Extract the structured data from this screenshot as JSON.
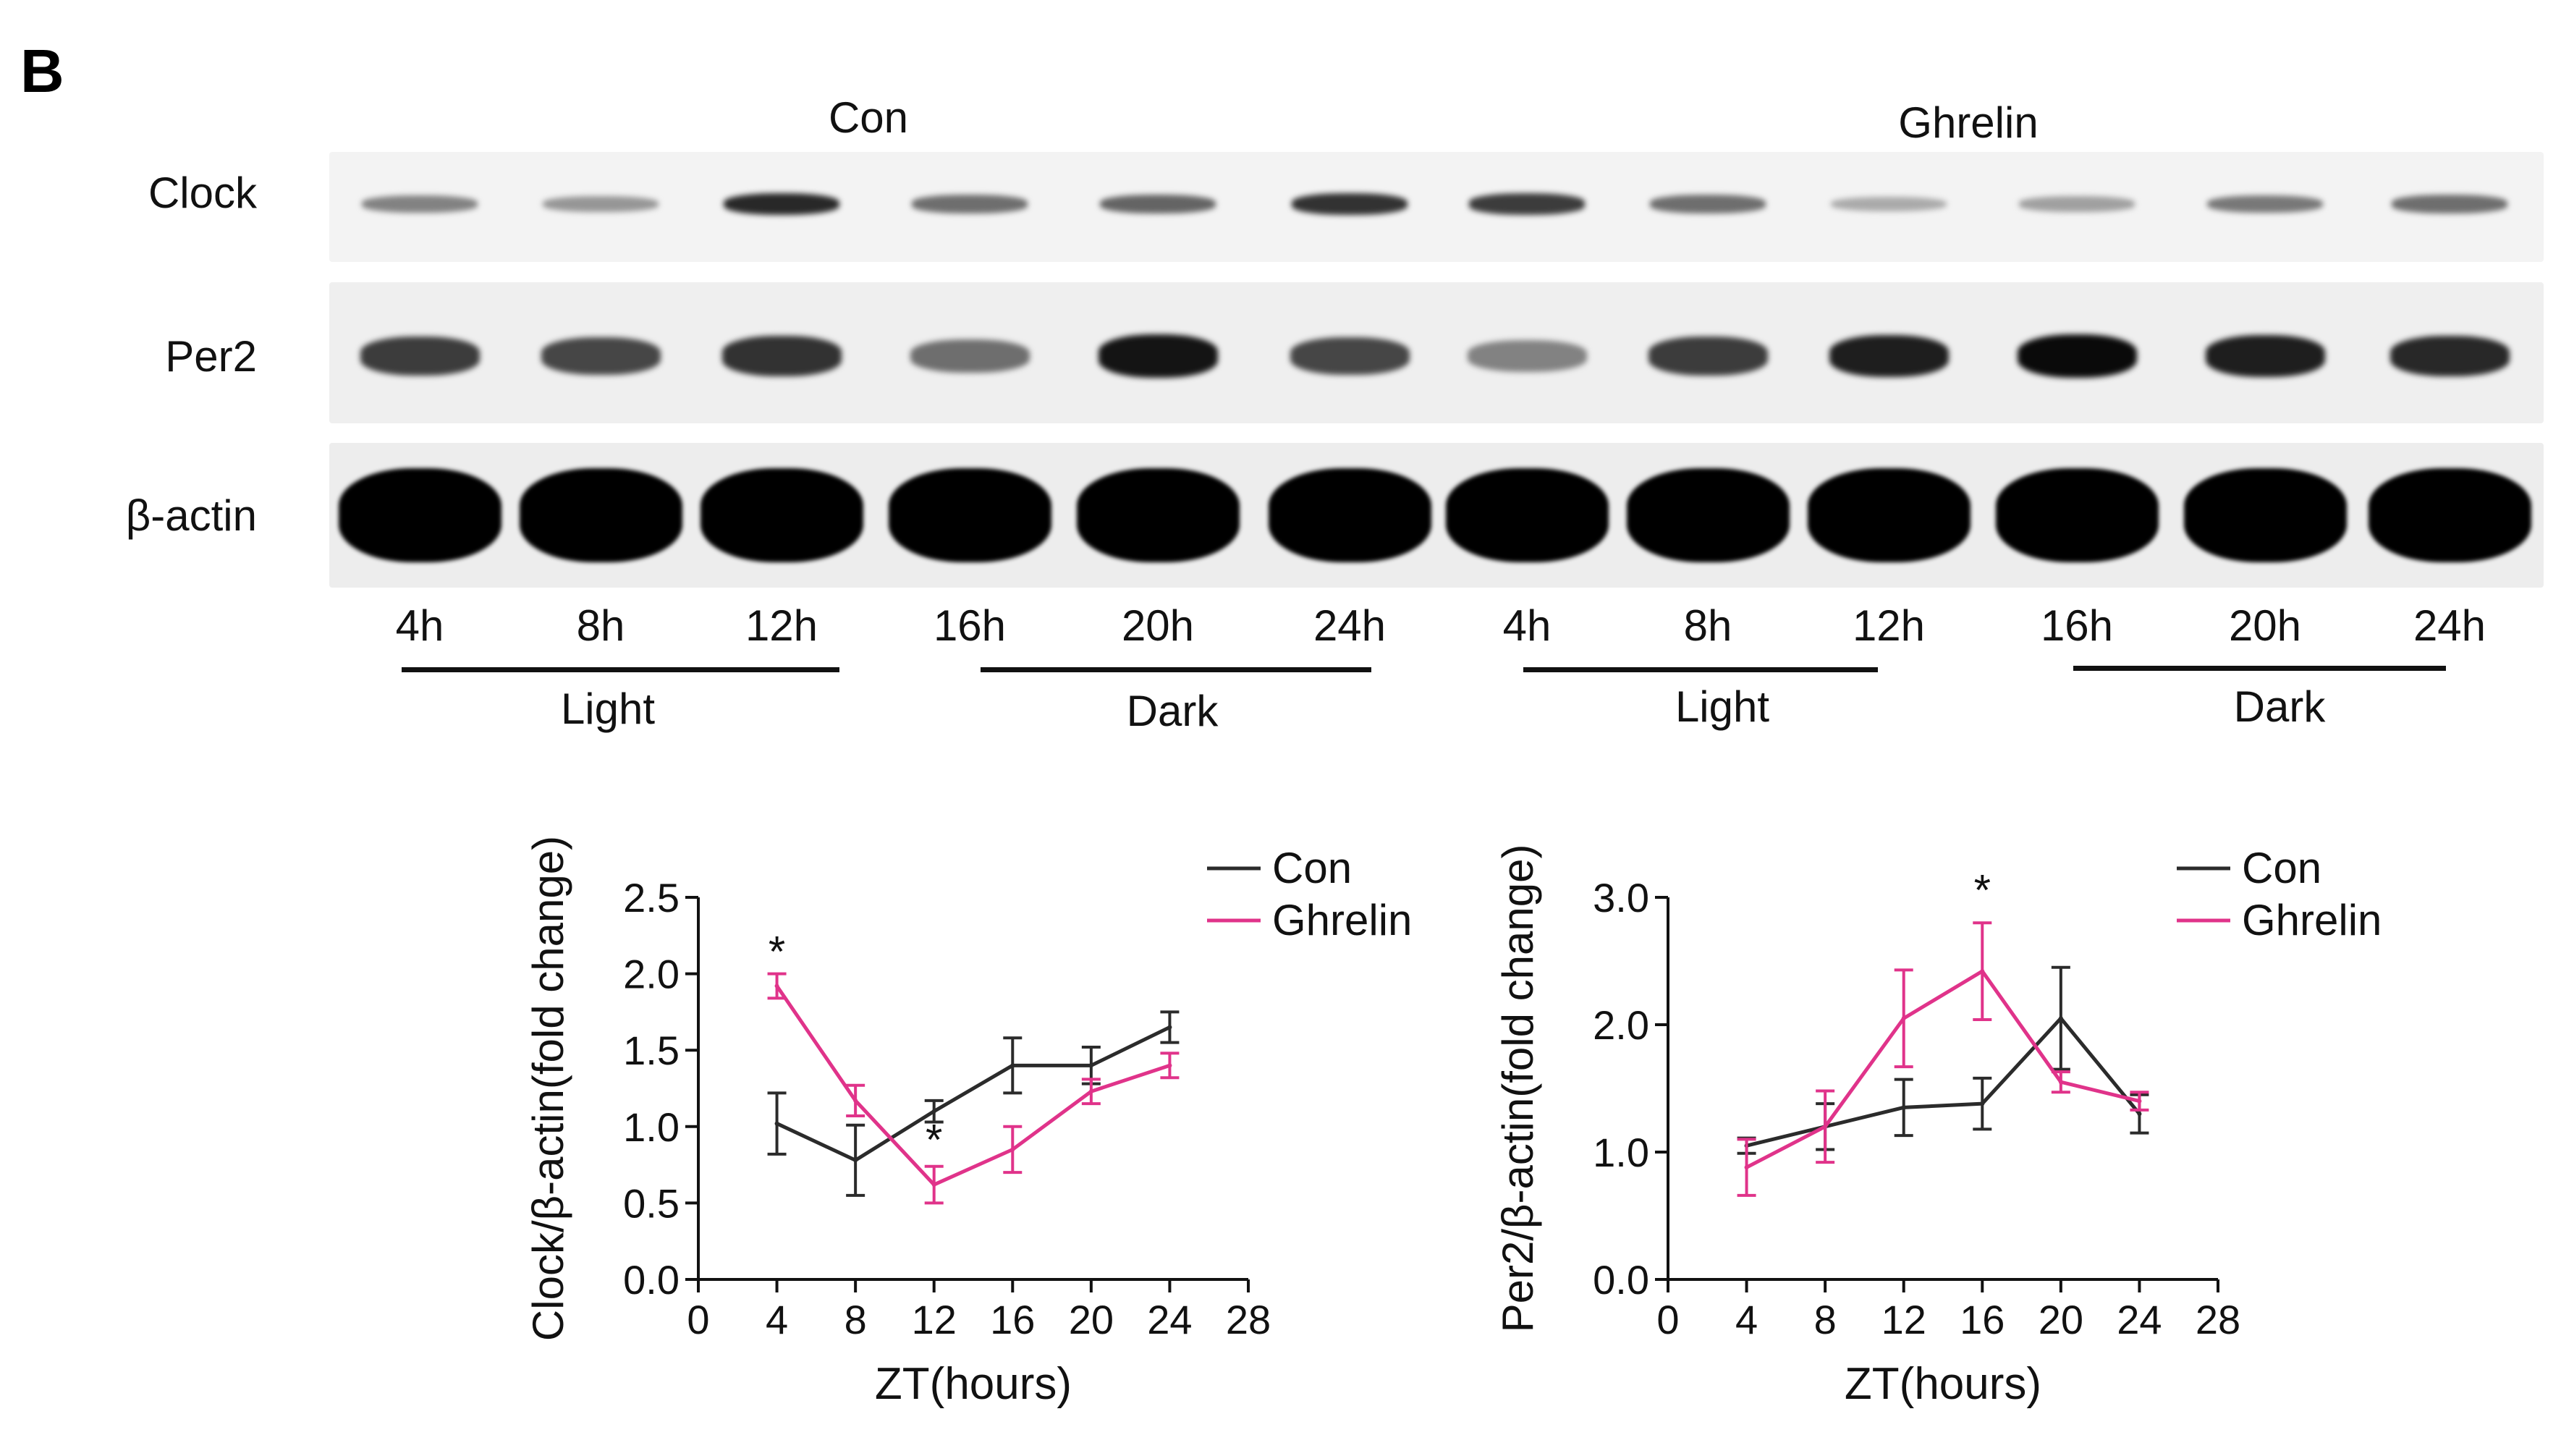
{
  "panel_label": "B",
  "blot": {
    "groups": [
      {
        "name": "Con"
      },
      {
        "name": "Ghrelin"
      }
    ],
    "rows": [
      {
        "label": "Clock"
      },
      {
        "label": "Per2"
      },
      {
        "label": "β-actin"
      }
    ],
    "lanes": [
      "4h",
      "8h",
      "12h",
      "16h",
      "20h",
      "24h",
      "4h",
      "8h",
      "12h",
      "16h",
      "20h",
      "24h"
    ],
    "phases": [
      "Light",
      "Dark",
      "Light",
      "Dark"
    ],
    "intensity": {
      "clock": [
        0.35,
        0.25,
        0.8,
        0.45,
        0.5,
        0.75,
        0.7,
        0.45,
        0.15,
        0.2,
        0.4,
        0.45
      ],
      "per2": [
        0.7,
        0.65,
        0.75,
        0.45,
        0.9,
        0.65,
        0.35,
        0.7,
        0.85,
        0.95,
        0.85,
        0.8
      ],
      "actin": [
        1,
        1,
        1,
        1,
        1,
        1,
        1,
        1,
        1,
        1,
        1,
        1
      ]
    }
  },
  "chart_data": [
    {
      "type": "line",
      "ylabel": "Clock/β-actin(fold change)",
      "xlabel": "ZT(hours)",
      "xlim": [
        0,
        28
      ],
      "xticks": [
        "0",
        "4",
        "8",
        "12",
        "16",
        "20",
        "24",
        "28"
      ],
      "ylim": [
        0,
        2.5
      ],
      "yticks": [
        "0.0",
        "0.5",
        "1.0",
        "1.5",
        "2.0",
        "2.5"
      ],
      "x": [
        4,
        8,
        12,
        16,
        20,
        24
      ],
      "series": [
        {
          "name": "Con",
          "color": "#2b2b2b",
          "values": [
            1.02,
            0.78,
            1.1,
            1.4,
            1.4,
            1.65
          ],
          "errors": [
            0.2,
            0.23,
            0.07,
            0.18,
            0.12,
            0.1
          ]
        },
        {
          "name": "Ghrelin",
          "color": "#e0338a",
          "values": [
            1.92,
            1.17,
            0.62,
            0.85,
            1.23,
            1.4
          ],
          "errors": [
            0.08,
            0.1,
            0.12,
            0.15,
            0.08,
            0.08
          ]
        }
      ],
      "annotations": [
        {
          "text": "*",
          "x": 4,
          "y": 2.18
        },
        {
          "text": "*",
          "x": 12,
          "y": 0.95
        }
      ],
      "legend": "top-right"
    },
    {
      "type": "line",
      "ylabel": "Per2/β-actin(fold change)",
      "xlabel": "ZT(hours)",
      "xlim": [
        0,
        28
      ],
      "xticks": [
        "0",
        "4",
        "8",
        "12",
        "16",
        "20",
        "24",
        "28"
      ],
      "ylim": [
        0,
        3.0
      ],
      "yticks": [
        "0.0",
        "1.0",
        "2.0",
        "3.0"
      ],
      "x": [
        4,
        8,
        12,
        16,
        20,
        24
      ],
      "series": [
        {
          "name": "Con",
          "color": "#2b2b2b",
          "values": [
            1.05,
            1.2,
            1.35,
            1.38,
            2.05,
            1.3
          ],
          "errors": [
            0.06,
            0.18,
            0.22,
            0.2,
            0.4,
            0.15
          ]
        },
        {
          "name": "Ghrelin",
          "color": "#e0338a",
          "values": [
            0.88,
            1.2,
            2.05,
            2.42,
            1.55,
            1.4
          ],
          "errors": [
            0.22,
            0.28,
            0.38,
            0.38,
            0.08,
            0.07
          ]
        }
      ],
      "annotations": [
        {
          "text": "*",
          "x": 16,
          "y": 3.1
        }
      ],
      "legend": "top-right"
    }
  ]
}
